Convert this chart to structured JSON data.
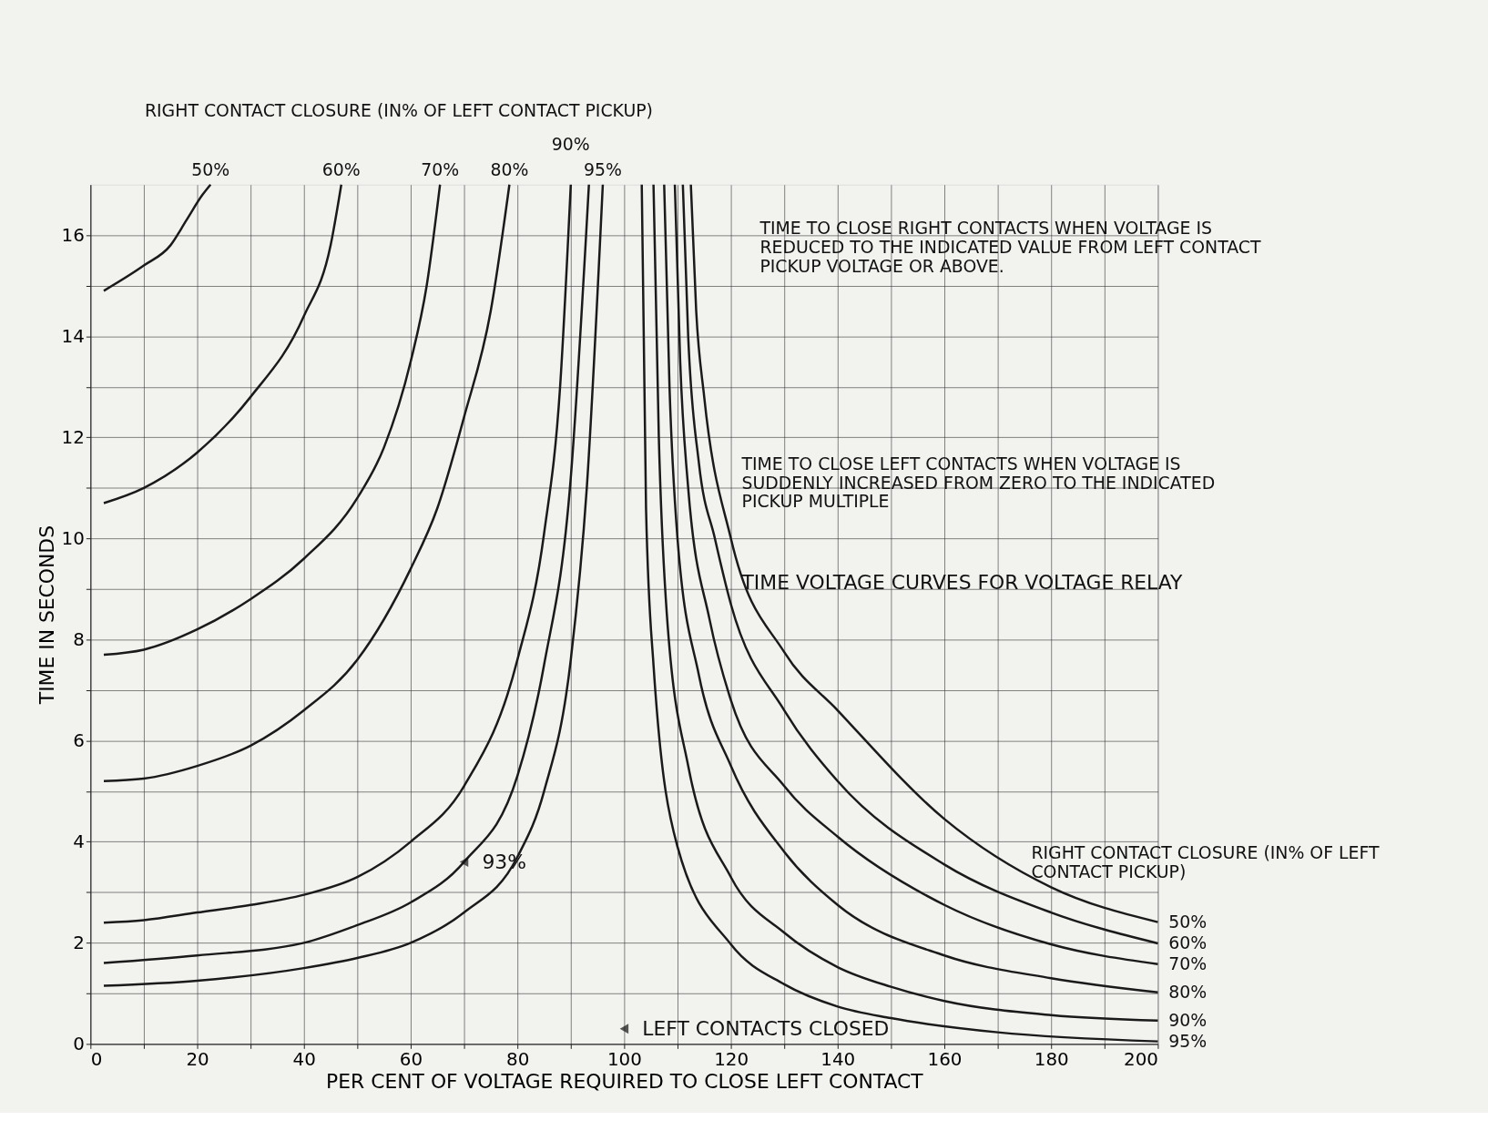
{
  "chart_data": {
    "type": "line",
    "title": "TIME VOLTAGE CURVES FOR VOLTAGE RELAY",
    "xlabel": "PER CENT OF VOLTAGE REQUIRED TO CLOSE LEFT CONTACT",
    "ylabel": "TIME IN SECONDS",
    "xlim": [
      0,
      200
    ],
    "ylim": [
      0,
      17
    ],
    "xticks": [
      0,
      {
        "value": 10,
        "label": null
      },
      20,
      {
        "value": 30,
        "label": null
      },
      40,
      {
        "value": 50,
        "label": null
      },
      60,
      {
        "value": 70,
        "label": null
      },
      80,
      {
        "value": 90,
        "label": null
      },
      100,
      {
        "value": 110,
        "label": null
      },
      120,
      {
        "value": 130,
        "label": null
      },
      140,
      {
        "value": 150,
        "label": null
      },
      160,
      {
        "value": 170,
        "label": null
      },
      180,
      {
        "value": 190,
        "label": null
      },
      200
    ],
    "yticks": [
      0,
      {
        "value": 1,
        "label": null
      },
      2,
      {
        "value": 3,
        "label": null
      },
      4,
      {
        "value": 5,
        "label": null
      },
      6,
      {
        "value": 7,
        "label": null
      },
      8,
      {
        "value": 9,
        "label": null
      },
      10,
      {
        "value": 11,
        "label": null
      },
      12,
      {
        "value": 13,
        "label": null
      },
      14,
      {
        "value": 15,
        "label": null
      },
      16
    ],
    "grid": true,
    "marker": "none",
    "line_style": "solid",
    "series": [
      {
        "name": "50%",
        "color": "#1a1a1a",
        "x": [
          2.5,
          10,
          15,
          18,
          21,
          22.5
        ],
        "values": [
          14.9,
          15.4,
          15.8,
          16.3,
          16.8,
          17
        ]
      },
      {
        "name": "60%",
        "color": "#1a1a1a",
        "x": [
          2.5,
          10,
          20,
          30,
          40,
          45,
          47
        ],
        "values": [
          10.7,
          11.0,
          11.7,
          12.8,
          14.4,
          15.8,
          17
        ]
      },
      {
        "name": "70%",
        "color": "#1a1a1a",
        "x": [
          2.5,
          10,
          20,
          30,
          40,
          50,
          55,
          60,
          63,
          65.5
        ],
        "values": [
          7.7,
          7.8,
          8.2,
          8.8,
          9.6,
          10.8,
          11.8,
          13.5,
          15,
          17
        ]
      },
      {
        "name": "80%",
        "color": "#1a1a1a",
        "x": [
          2.5,
          10,
          20,
          30,
          40,
          50,
          60,
          65,
          70,
          75,
          78.5
        ],
        "values": [
          5.2,
          5.25,
          5.5,
          5.9,
          6.6,
          7.6,
          9.4,
          10.6,
          12.4,
          14.5,
          17
        ]
      },
      {
        "name": "90%",
        "color": "#1a1a1a",
        "x": [
          2.5,
          10,
          20,
          30,
          40,
          50,
          60,
          70,
          80,
          85,
          88,
          90
        ],
        "values": [
          2.4,
          2.45,
          2.6,
          2.75,
          2.95,
          3.3,
          4.0,
          5.1,
          7.6,
          10.1,
          13,
          17
        ]
      },
      {
        "color": "#1a1a1a",
        "x": [
          2.5,
          20,
          40,
          50,
          60,
          70,
          80,
          85,
          90,
          93.4
        ],
        "values": [
          1.6,
          1.75,
          2.0,
          2.35,
          2.8,
          3.6,
          5.3,
          7.5,
          11.2,
          17
        ]
      },
      {
        "name": "95%",
        "color": "#1a1a1a",
        "x": [
          2.5,
          20,
          40,
          50,
          60,
          70,
          80,
          85,
          90,
          93,
          96
        ],
        "values": [
          1.15,
          1.25,
          1.5,
          1.7,
          2.0,
          2.6,
          3.7,
          5,
          7.6,
          11,
          17
        ]
      },
      {
        "name": "95%",
        "color": "#1a1a1a",
        "x": [
          103.3,
          104.1,
          105.5,
          110,
          120,
          130,
          140,
          150,
          170,
          200
        ],
        "values": [
          17,
          10.6,
          7.5,
          3.9,
          1.97,
          1.18,
          0.74,
          0.51,
          0.23,
          0.05
        ]
      },
      {
        "name": "90%",
        "color": "#1a1a1a",
        "x": [
          105.5,
          106.5,
          108,
          112,
          120,
          130,
          140,
          150,
          160,
          180,
          200
        ],
        "values": [
          17,
          12,
          8.5,
          5.5,
          3.3,
          2.2,
          1.52,
          1.13,
          0.85,
          0.57,
          0.46
        ]
      },
      {
        "name": "80%",
        "color": "#1a1a1a",
        "x": [
          107.5,
          108.5,
          110,
          114,
          120,
          130,
          140,
          160,
          180,
          200
        ],
        "values": [
          17,
          13,
          10,
          7.3,
          5.5,
          3.8,
          2.75,
          1.75,
          1.3,
          1.02
        ]
      },
      {
        "name": "70%",
        "color": "#1a1a1a",
        "x": [
          109.5,
          110.5,
          112,
          116,
          120,
          130,
          140,
          160,
          180,
          200
        ],
        "values": [
          17,
          13.5,
          11,
          8.4,
          6.8,
          5.1,
          4.1,
          2.75,
          1.97,
          1.58
        ]
      },
      {
        "name": "60%",
        "color": "#1a1a1a",
        "x": [
          111,
          112,
          114,
          117,
          120,
          130,
          140,
          160,
          180,
          200
        ],
        "values": [
          17,
          14,
          11.5,
          10,
          8.7,
          6.6,
          5.2,
          3.55,
          2.6,
          1.99
        ]
      },
      {
        "name": "50%",
        "color": "#1a1a1a",
        "x": [
          112.5,
          113.5,
          115,
          120,
          130,
          140,
          160,
          180,
          200
        ],
        "values": [
          17,
          14.5,
          12.8,
          10,
          7.75,
          6.6,
          4.45,
          3.1,
          2.41
        ]
      }
    ],
    "annotations": [
      "RIGHT CONTACT CLOSURE (IN% OF LEFT CONTACT PICKUP)",
      "TIME TO CLOSE RIGHT CONTACTS WHEN VOLTAGE IS REDUCED TO THE INDICATED VALUE FROM LEFT CONTACT PICKUP VOLTAGE OR ABOVE.",
      "TIME TO CLOSE LEFT CONTACTS WHEN VOLTAGE IS SUDDENLY INCREASED FROM ZERO TO THE INDICATED PICKUP MULTIPLE",
      "RIGHT CONTACT CLOSURE (IN% OF LEFT CONTACT PICKUP)",
      {
        "text": "93%",
        "x": 70,
        "y": 3.6
      },
      {
        "text": "LEFT CONTACTS CLOSED",
        "x": 100,
        "y": 0.3
      }
    ]
  }
}
